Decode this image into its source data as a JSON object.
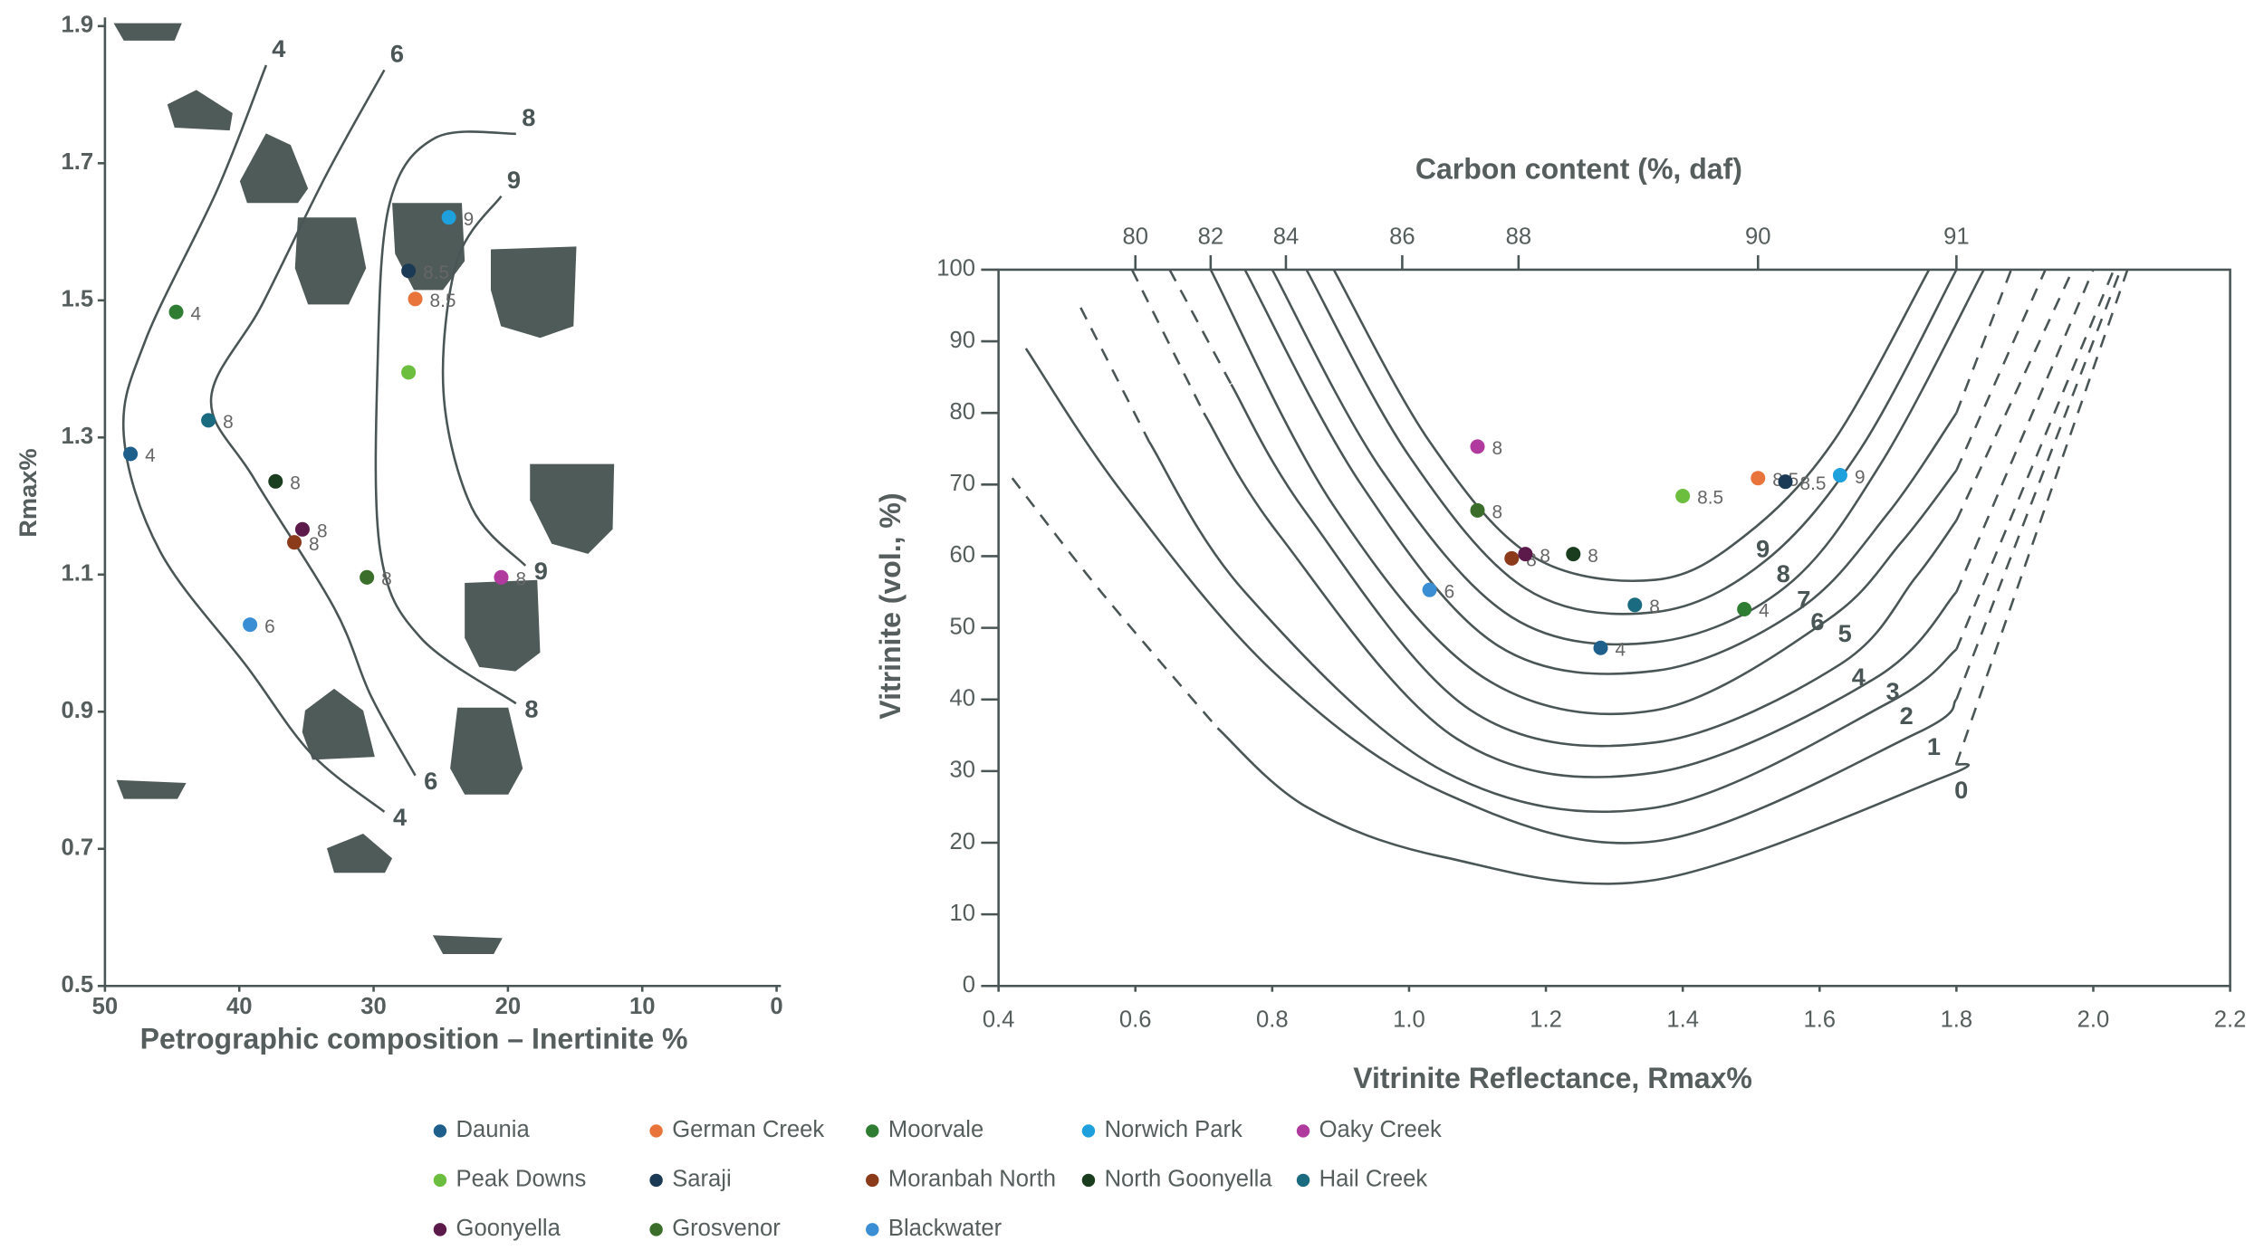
{
  "chart_data": [
    {
      "type": "scatter",
      "xlabel": "Petrographic composition – Inertinite %",
      "ylabel": "Rmax%",
      "xlim": [
        50,
        0
      ],
      "ylim": [
        0.5,
        1.9
      ],
      "xticks": [
        50,
        40,
        30,
        20,
        10,
        0
      ],
      "yticks": [
        0.5,
        0.7,
        0.9,
        1.1,
        1.3,
        1.5,
        1.7,
        1.9
      ],
      "x": [
        48.1,
        26.9,
        44.7,
        24.4,
        20.5,
        27.4,
        27.4,
        35.9,
        37.3,
        42.3,
        35.3,
        30.5,
        39.2
      ],
      "values": [
        1.276,
        1.502,
        1.483,
        1.621,
        1.096,
        1.395,
        1.543,
        1.147,
        1.236,
        1.325,
        1.166,
        1.096,
        1.027
      ],
      "point_labels": [
        "4",
        "8.5",
        "4",
        "9",
        "8",
        null,
        "8.5",
        "8",
        "8",
        "8",
        "8",
        "8",
        "6"
      ],
      "contours": [
        {
          "label": "4",
          "x": [
            38.0,
            41.6,
            47.0,
            48.6,
            45.9,
            39.4,
            34.6,
            29.2
          ],
          "values": [
            1.843,
            1.663,
            1.441,
            1.304,
            1.134,
            0.965,
            0.838,
            0.754
          ]
        },
        {
          "label": "6",
          "x": [
            29.2,
            33.5,
            38.3,
            42.1,
            38.9,
            32.9,
            30.2,
            26.9
          ],
          "values": [
            1.836,
            1.684,
            1.494,
            1.356,
            1.24,
            1.05,
            0.923,
            0.807
          ]
        },
        {
          "label": "8",
          "x": [
            19.4,
            25.4,
            28.8,
            29.7,
            29.5,
            26.5,
            19.4
          ],
          "values": [
            1.743,
            1.737,
            1.642,
            1.409,
            1.134,
            1.008,
            0.912
          ]
        },
        {
          "label": "9",
          "x": [
            20.5,
            23.8,
            24.8,
            22.7,
            18.7
          ],
          "values": [
            1.652,
            1.557,
            1.367,
            1.198,
            1.113
          ]
        }
      ]
    },
    {
      "type": "scatter",
      "box": true,
      "xlabel": "Vitrinite Reflectance, Rmax%",
      "ylabel": "Vitrinite (vol., %)",
      "x2label": "Carbon content (%, daf)",
      "xlim": [
        0.4,
        2.2
      ],
      "ylim": [
        0,
        100
      ],
      "xticks": [
        0.4,
        0.6,
        0.8,
        {
          "value": 1,
          "label": "1.0"
        },
        1.2,
        1.4,
        1.6,
        1.8,
        {
          "value": 2,
          "label": "2.0"
        },
        2.2
      ],
      "yticks": [
        0,
        10,
        20,
        30,
        40,
        50,
        60,
        70,
        80,
        90,
        100
      ],
      "x2ticks": [
        {
          "value": 80,
          "x": 0.6
        },
        {
          "value": 82,
          "x": 0.71
        },
        {
          "value": 84,
          "x": 0.82
        },
        {
          "value": 86,
          "x": 0.99
        },
        {
          "value": 88,
          "x": 1.16
        },
        {
          "value": 90,
          "x": 1.51
        },
        {
          "value": 91,
          "x": 1.8
        }
      ],
      "x": [
        1.28,
        1.51,
        1.49,
        1.63,
        1.1,
        1.4,
        1.55,
        1.15,
        1.24,
        1.33,
        1.17,
        1.1,
        1.03
      ],
      "values": [
        47.2,
        70.9,
        52.6,
        71.3,
        75.3,
        68.4,
        70.4,
        59.7,
        60.3,
        53.2,
        60.3,
        66.4,
        55.3
      ],
      "point_labels": [
        "4",
        "8.5",
        "4",
        "9",
        "8",
        "8.5",
        "8.5",
        "8",
        "8",
        "8",
        "8",
        "8",
        "6"
      ],
      "contours": [
        {
          "label": "9",
          "label_x": 1.49,
          "label_y": 62.8,
          "x": [
            0.89,
            1.03,
            1.18,
            1.36,
            1.49,
            1.62,
            1.76
          ],
          "values": [
            100,
            76,
            60,
            56.7,
            62.8,
            76,
            100
          ]
        },
        {
          "label": "8",
          "label_x": 1.52,
          "label_y": 59.3,
          "x": [
            0.85,
            1.0,
            1.17,
            1.36,
            1.52,
            1.66,
            1.8
          ],
          "values": [
            100,
            74,
            55.5,
            52.2,
            59.3,
            75,
            100
          ]
        },
        {
          "label": "7",
          "label_x": 1.55,
          "label_y": 55.7,
          "x": [
            0.8,
            0.96,
            1.15,
            1.36,
            1.55,
            1.69,
            1.84
          ],
          "values": [
            100,
            72,
            51.5,
            48,
            55.7,
            73,
            100
          ]
        },
        {
          "label": "6",
          "label_x": 1.57,
          "label_y": 52.6,
          "x": [
            0.76,
            0.93,
            1.13,
            1.36,
            1.57,
            1.7,
            1.8
          ],
          "values": [
            100,
            70,
            47.5,
            44,
            52.6,
            66,
            80
          ]
        },
        {
          "label": "5",
          "label_x": 1.61,
          "label_y": 51,
          "x": [
            0.71,
            0.89,
            1.11,
            1.36,
            1.61,
            1.72,
            1.8
          ],
          "values": [
            100,
            67,
            43,
            38.5,
            51,
            62,
            72
          ]
        },
        {
          "label": "4",
          "label_x": 1.63,
          "label_y": 44.9,
          "x": [
            0.74,
            0.85,
            1.09,
            1.36,
            1.63,
            1.74,
            1.8
          ],
          "values": [
            84,
            66,
            38.5,
            34,
            44.9,
            57,
            65
          ]
        },
        {
          "label": "3",
          "label_x": 1.68,
          "label_y": 42.9,
          "x": [
            0.7,
            0.81,
            1.07,
            1.36,
            1.68,
            1.8
          ],
          "values": [
            80,
            63,
            34.5,
            29.8,
            42.9,
            55
          ]
        },
        {
          "label": "2",
          "label_x": 1.7,
          "label_y": 39.5,
          "x": [
            0.62,
            0.76,
            1.05,
            1.36,
            1.7,
            1.8
          ],
          "values": [
            76,
            55,
            30,
            24.9,
            39.5,
            47
          ]
        },
        {
          "label": "1",
          "label_x": 1.74,
          "label_y": 35.2,
          "x": [
            0.44,
            0.58,
            0.8,
            1.05,
            1.36,
            1.74,
            1.8
          ],
          "values": [
            89,
            69,
            44,
            27,
            20.2,
            35.2,
            40
          ]
        },
        {
          "label": "0",
          "label_x": 1.78,
          "label_y": 29.1,
          "x": [
            0.72,
            0.85,
            1.05,
            1.36,
            1.78,
            1.8
          ],
          "values": [
            36,
            25,
            18,
            14.8,
            29.1,
            31
          ]
        }
      ],
      "extensions": [
        {
          "x": [
            1.8,
            1.88
          ],
          "values": [
            80,
            100
          ]
        },
        {
          "x": [
            1.8,
            1.93
          ],
          "values": [
            72,
            100
          ]
        },
        {
          "x": [
            0.65,
            0.74
          ],
          "values": [
            100,
            84
          ]
        },
        {
          "x": [
            1.8,
            1.97
          ],
          "values": [
            65,
            100
          ]
        },
        {
          "x": [
            0.595,
            0.7
          ],
          "values": [
            100,
            80
          ]
        },
        {
          "x": [
            1.8,
            2.0
          ],
          "values": [
            55,
            100
          ]
        },
        {
          "x": [
            0.52,
            0.62
          ],
          "values": [
            94.7,
            76
          ]
        },
        {
          "x": [
            1.8,
            2.03
          ],
          "values": [
            47,
            100
          ]
        },
        {
          "x": [
            1.8,
            2.04
          ],
          "values": [
            40,
            100
          ]
        },
        {
          "x": [
            0.42,
            0.55,
            0.72
          ],
          "values": [
            70.9,
            55,
            36
          ]
        },
        {
          "x": [
            1.8,
            2.05
          ],
          "values": [
            31,
            100
          ]
        }
      ]
    }
  ],
  "legend": [
    {
      "name": "Daunia",
      "color": "#1f5f8b"
    },
    {
      "name": "German Creek",
      "color": "#e8743b"
    },
    {
      "name": "Moorvale",
      "color": "#2e7d32"
    },
    {
      "name": "Norwich Park",
      "color": "#1ea0dc"
    },
    {
      "name": "Oaky Creek",
      "color": "#b03a9e"
    },
    {
      "name": "Peak Downs",
      "color": "#6cbf3e"
    },
    {
      "name": "Saraji",
      "color": "#1b3a55"
    },
    {
      "name": "Moranbah North",
      "color": "#8b3a1a"
    },
    {
      "name": "North Goonyella",
      "color": "#1b3d1f"
    },
    {
      "name": "Hail Creek",
      "color": "#1a6a80"
    },
    {
      "name": "Goonyella",
      "color": "#5c1a4a"
    },
    {
      "name": "Grosvenor",
      "color": "#3b6e2a"
    },
    {
      "name": "Blackwater",
      "color": "#3a8fd4"
    }
  ]
}
